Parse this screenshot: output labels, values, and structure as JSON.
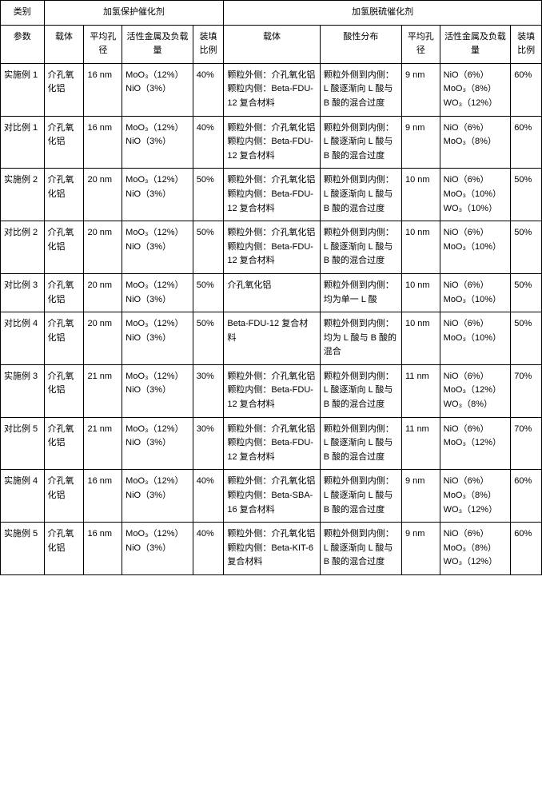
{
  "headers": {
    "category": "类别",
    "param": "参数",
    "group_a": "加氢保护催化剂",
    "group_b": "加氢脱硫催化剂",
    "carrier": "载体",
    "pore": "平均孔径",
    "metal": "活性金属及负载量",
    "ratio": "装填比例",
    "acid": "酸性分布"
  },
  "rows": [
    {
      "name": "实施例 1",
      "a_carrier": "介孔氧化铝",
      "a_pore": "16 nm",
      "a_metal": "MoO₃（12%）NiO（3%）",
      "a_ratio": "40%",
      "b_carrier": "颗粒外侧：介孔氧化铝 颗粒内侧：Beta-FDU-12 复合材料",
      "b_acid": "颗粒外侧到内侧：L 酸逐渐向 L 酸与 B 酸的混合过度",
      "b_pore": "9 nm",
      "b_metal": "NiO（6%）MoO₃（8%）WO₃（12%）",
      "b_ratio": "60%"
    },
    {
      "name": "对比例 1",
      "a_carrier": "介孔氧化铝",
      "a_pore": "16 nm",
      "a_metal": "MoO₃（12%）NiO（3%）",
      "a_ratio": "40%",
      "b_carrier": "颗粒外侧：介孔氧化铝 颗粒内侧：Beta-FDU-12 复合材料",
      "b_acid": "颗粒外侧到内侧：L 酸逐渐向 L 酸与 B 酸的混合过度",
      "b_pore": "9 nm",
      "b_metal": "NiO（6%）MoO₃（8%）",
      "b_ratio": "60%"
    },
    {
      "name": "实施例 2",
      "a_carrier": "介孔氧化铝",
      "a_pore": "20 nm",
      "a_metal": "MoO₃（12%）NiO（3%）",
      "a_ratio": "50%",
      "b_carrier": "颗粒外侧：介孔氧化铝 颗粒内侧：Beta-FDU-12 复合材料",
      "b_acid": "颗粒外侧到内侧：L 酸逐渐向 L 酸与 B 酸的混合过度",
      "b_pore": "10 nm",
      "b_metal": "NiO（6%）MoO₃（10%）WO₃（10%）",
      "b_ratio": "50%"
    },
    {
      "name": "对比例 2",
      "a_carrier": "介孔氧化铝",
      "a_pore": "20 nm",
      "a_metal": "MoO₃（12%）NiO（3%）",
      "a_ratio": "50%",
      "b_carrier": "颗粒外侧：介孔氧化铝 颗粒内侧：Beta-FDU-12 复合材料",
      "b_acid": "颗粒外侧到内侧：L 酸逐渐向 L 酸与 B 酸的混合过度",
      "b_pore": "10 nm",
      "b_metal": "NiO（6%）MoO₃（10%）",
      "b_ratio": "50%"
    },
    {
      "name": "对比例 3",
      "a_carrier": "介孔氧化铝",
      "a_pore": "20 nm",
      "a_metal": "MoO₃（12%）NiO（3%）",
      "a_ratio": "50%",
      "b_carrier": "介孔氧化铝",
      "b_acid": "颗粒外侧到内侧：均为单一 L 酸",
      "b_pore": "10 nm",
      "b_metal": "NiO（6%）MoO₃（10%）",
      "b_ratio": "50%"
    },
    {
      "name": "对比例 4",
      "a_carrier": "介孔氧化铝",
      "a_pore": "20 nm",
      "a_metal": "MoO₃（12%）NiO（3%）",
      "a_ratio": "50%",
      "b_carrier": "Beta-FDU-12 复合材料",
      "b_acid": "颗粒外侧到内侧：均为 L 酸与 B 酸的混合",
      "b_pore": "10 nm",
      "b_metal": "NiO（6%）MoO₃（10%）",
      "b_ratio": "50%"
    },
    {
      "name": "实施例 3",
      "a_carrier": "介孔氧化铝",
      "a_pore": "21 nm",
      "a_metal": "MoO₃（12%）NiO（3%）",
      "a_ratio": "30%",
      "b_carrier": "颗粒外侧：介孔氧化铝 颗粒内侧：Beta-FDU-12 复合材料",
      "b_acid": "颗粒外侧到内侧：L 酸逐渐向 L 酸与 B 酸的混合过度",
      "b_pore": "11 nm",
      "b_metal": "NiO（6%）MoO₃（12%）WO₃（8%）",
      "b_ratio": "70%"
    },
    {
      "name": "对比例 5",
      "a_carrier": "介孔氧化铝",
      "a_pore": "21 nm",
      "a_metal": "MoO₃（12%）NiO（3%）",
      "a_ratio": "30%",
      "b_carrier": "颗粒外侧：介孔氧化铝 颗粒内侧：Beta-FDU-12 复合材料",
      "b_acid": "颗粒外侧到内侧：L 酸逐渐向 L 酸与 B 酸的混合过度",
      "b_pore": "11 nm",
      "b_metal": "NiO（6%）MoO₃（12%）",
      "b_ratio": "70%"
    },
    {
      "name": "实施例 4",
      "a_carrier": "介孔氧化铝",
      "a_pore": "16 nm",
      "a_metal": "MoO₃（12%）NiO（3%）",
      "a_ratio": "40%",
      "b_carrier": "颗粒外侧：介孔氧化铝 颗粒内侧：Beta-SBA-16 复合材料",
      "b_acid": "颗粒外侧到内侧：L 酸逐渐向 L 酸与 B 酸的混合过度",
      "b_pore": "9 nm",
      "b_metal": "NiO（6%）MoO₃（8%）WO₃（12%）",
      "b_ratio": "60%"
    },
    {
      "name": "实施例 5",
      "a_carrier": "介孔氧化铝",
      "a_pore": "16 nm",
      "a_metal": "MoO₃（12%）NiO（3%）",
      "a_ratio": "40%",
      "b_carrier": "颗粒外侧：介孔氧化铝 颗粒内侧：Beta-KIT-6 复合材料",
      "b_acid": "颗粒外侧到内侧：L 酸逐渐向 L 酸与 B 酸的混合过度",
      "b_pore": "9 nm",
      "b_metal": "NiO（6%）MoO₃（8%）WO₃（12%）",
      "b_ratio": "60%"
    }
  ]
}
